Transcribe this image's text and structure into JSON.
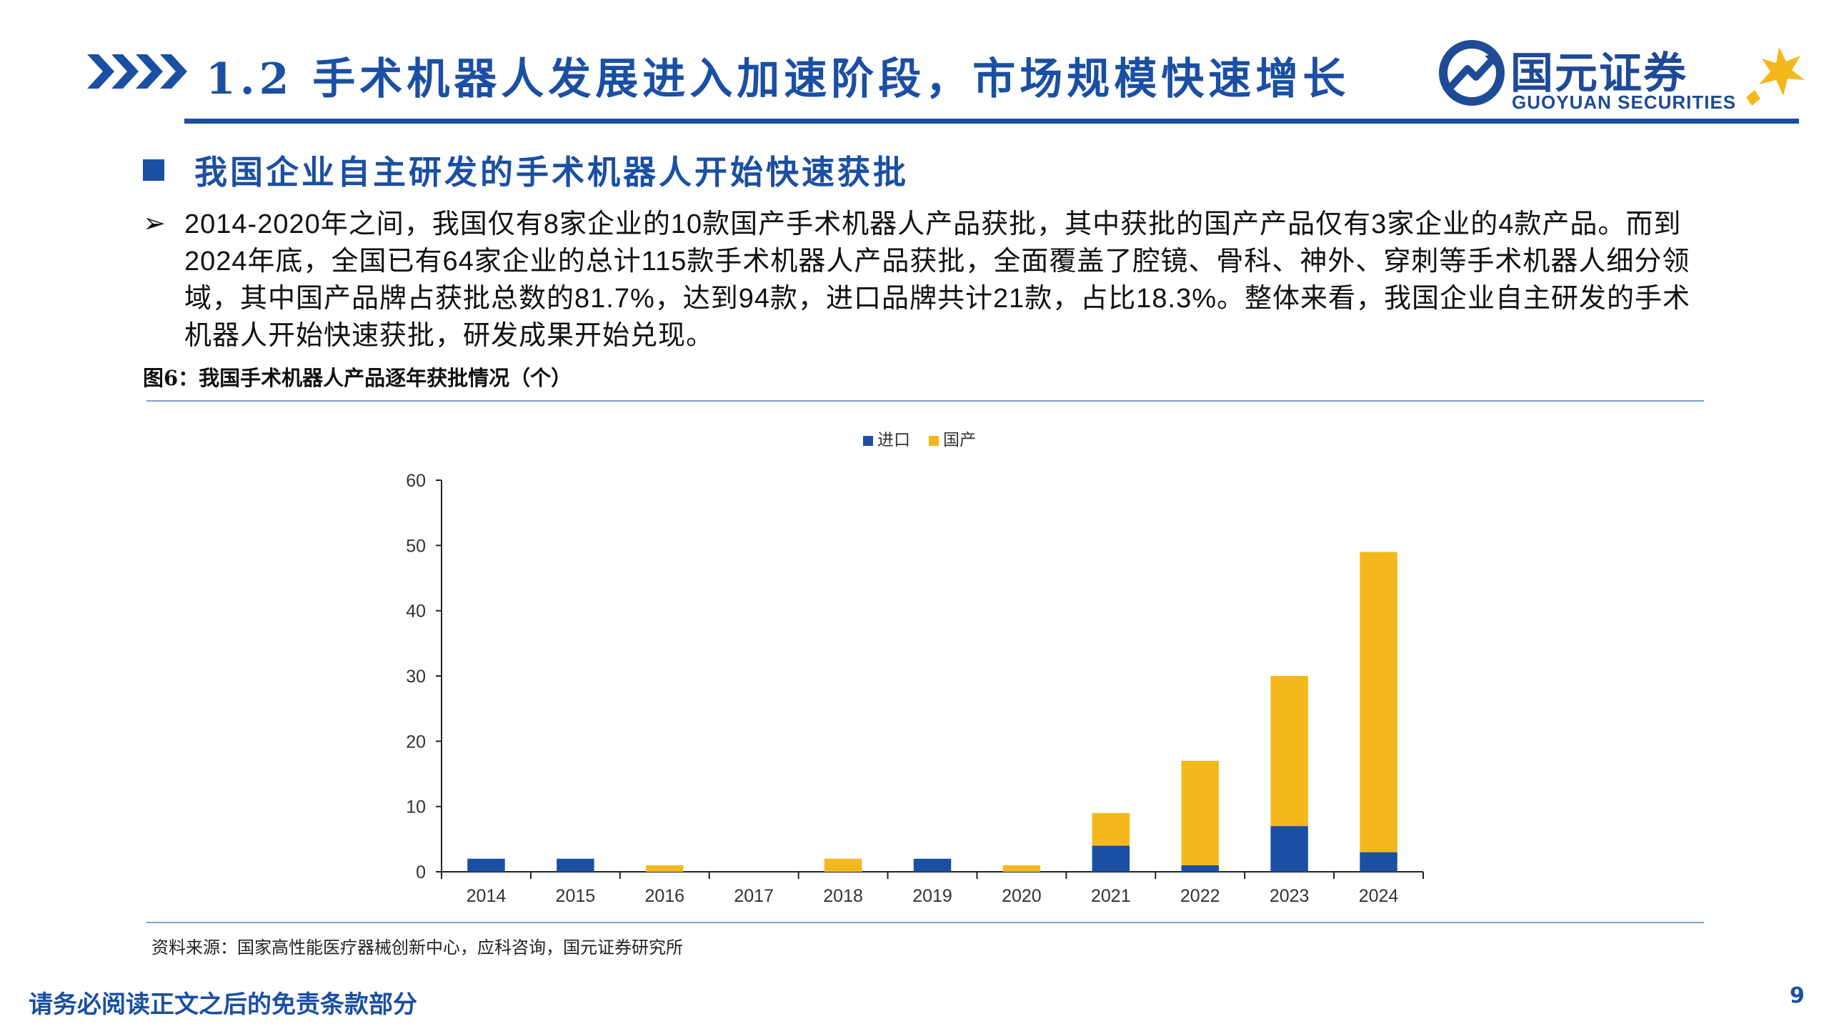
{
  "header": {
    "title": "1.2 手术机器人发展进入加速阶段，市场规模快速增长",
    "logo_cn": "国元证券",
    "logo_en": "GUOYUAN SECURITIES"
  },
  "section": {
    "heading": "我国企业自主研发的手术机器人开始快速获批"
  },
  "body": {
    "marker": "➢",
    "paragraph": "2014-2020年之间，我国仅有8家企业的10款国产手术机器人产品获批，其中获批的国产产品仅有3家企业的4款产品。而到2024年底，全国已有64家企业的总计115款手术机器人产品获批，全面覆盖了腔镜、骨科、神外、穿刺等手术机器人细分领域，其中国产品牌占获批总数的81.7%，达到94款，进口品牌共计21款，占比18.3%。整体来看，我国企业自主研发的手术机器人开始快速获批，研发成果开始兑现。"
  },
  "figure": {
    "caption": "图6：我国手术机器人产品逐年获批情况（个）",
    "source": "资料来源：国家高性能医疗器械创新中心，应科咨询，国元证券研究所"
  },
  "chart_data": {
    "type": "bar",
    "stacked": true,
    "title": "",
    "categories": [
      "2014",
      "2015",
      "2016",
      "2017",
      "2018",
      "2019",
      "2020",
      "2021",
      "2022",
      "2023",
      "2024"
    ],
    "series": [
      {
        "name": "进口",
        "color": "#1a4fa3",
        "values": [
          2,
          2,
          0,
          0,
          0,
          2,
          0,
          4,
          1,
          7,
          3
        ]
      },
      {
        "name": "国产",
        "color": "#f5b81c",
        "values": [
          0,
          0,
          1,
          0,
          2,
          0,
          1,
          5,
          16,
          23,
          46
        ]
      }
    ],
    "yticks": [
      0,
      10,
      20,
      30,
      40,
      50,
      60
    ],
    "ylim": [
      0,
      60
    ],
    "xlabel": "",
    "ylabel": "",
    "legend": "top-center",
    "grid": false
  },
  "footer": {
    "disclaimer": "请务必阅读正文之后的免责条款部分",
    "page_number": "9"
  }
}
